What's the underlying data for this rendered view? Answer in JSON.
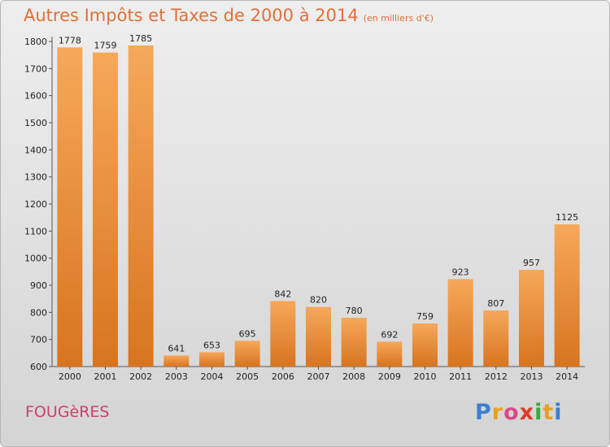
{
  "header": {
    "title": "Autres Impôts et Taxes de 2000 à 2014",
    "subtitle": "(en milliers d'€)"
  },
  "footer": {
    "place": "FOUGèRES",
    "brand": [
      "P",
      "r",
      "o",
      "x",
      "i",
      "t",
      "i"
    ],
    "brand_colors": [
      "#3b7fd0",
      "#e9a020",
      "#d84a86",
      "#e03a2a",
      "#3aa83a",
      "#e9a020",
      "#3b7fd0"
    ]
  },
  "chart_data": {
    "type": "bar",
    "title": "Autres Impôts et Taxes de 2000 à 2014",
    "subtitle": "(en milliers d'€)",
    "xlabel": "",
    "ylabel": "",
    "categories": [
      "2000",
      "2001",
      "2002",
      "2003",
      "2004",
      "2005",
      "2006",
      "2007",
      "2008",
      "2009",
      "2010",
      "2011",
      "2012",
      "2013",
      "2014"
    ],
    "values": [
      1778,
      1759,
      1785,
      641,
      653,
      695,
      842,
      820,
      780,
      692,
      759,
      923,
      807,
      957,
      1125
    ],
    "ylim": [
      600,
      1800
    ],
    "yticks": [
      600,
      700,
      800,
      900,
      1000,
      1100,
      1200,
      1300,
      1400,
      1500,
      1600,
      1700,
      1800
    ],
    "grid": false,
    "bar_color": "#f29e4c",
    "bar_color_dark": "#d97222"
  }
}
